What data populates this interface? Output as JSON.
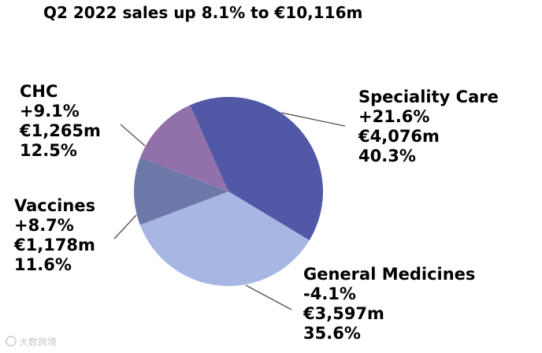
{
  "chart_data": {
    "type": "pie",
    "title": "Q2 2022 sales up 8.1% to €10,116m",
    "slices": [
      {
        "name": "Speciality Care",
        "growth": "+21.6%",
        "sales": "€4,076m",
        "share": "40.3%",
        "value": 40.3,
        "color": "#5158a6"
      },
      {
        "name": "General Medicines",
        "growth": "-4.1%",
        "sales": "€3,597m",
        "share": "35.6%",
        "value": 35.6,
        "color": "#a8b6e3"
      },
      {
        "name": "Vaccines",
        "growth": "+8.7%",
        "sales": "€1,178m",
        "share": "11.6%",
        "value": 11.6,
        "color": "#6c79a8"
      },
      {
        "name": "CHC",
        "growth": "+9.1%",
        "sales": "€1,265m",
        "share": "12.5%",
        "value": 12.5,
        "color": "#9271ab"
      }
    ]
  },
  "watermark": "大数跨境"
}
